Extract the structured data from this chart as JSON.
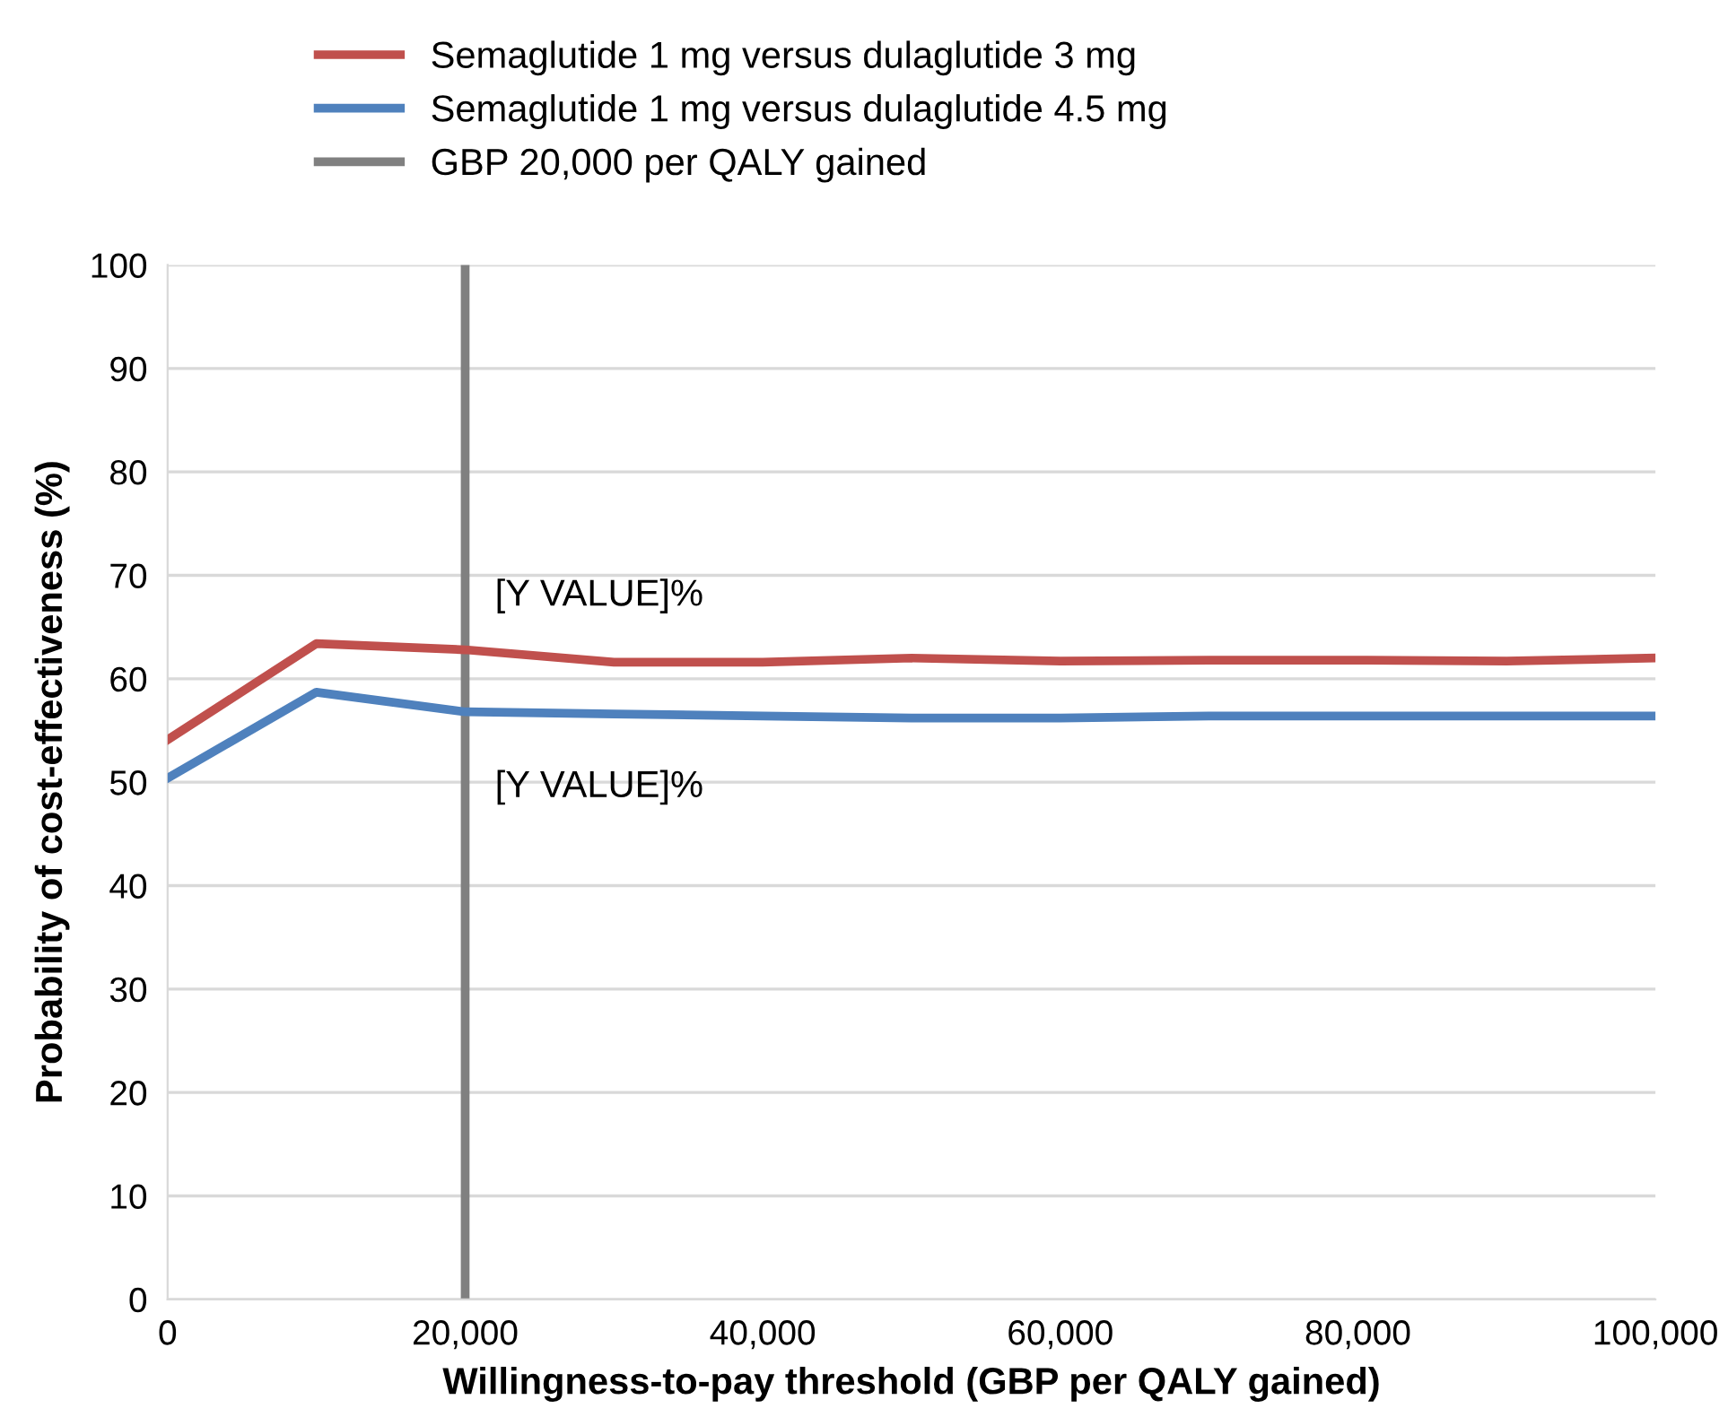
{
  "chart_data": {
    "type": "line",
    "xlabel": "Willingness-to-pay threshold (GBP per QALY gained)",
    "ylabel": "Probability of cost-effectiveness (%)",
    "x": [
      0,
      10000,
      20000,
      30000,
      40000,
      50000,
      60000,
      70000,
      80000,
      90000,
      100000
    ],
    "series": [
      {
        "name": "Semaglutide 1 mg versus dulaglutide 3 mg",
        "color": "#c0504d",
        "values": [
          54.1,
          63.4,
          62.8,
          61.6,
          61.6,
          62.0,
          61.7,
          61.8,
          61.8,
          61.7,
          62.0
        ]
      },
      {
        "name": "Semaglutide 1 mg versus dulaglutide 4.5 mg",
        "color": "#4f81bd",
        "values": [
          50.4,
          58.7,
          56.8,
          56.6,
          56.4,
          56.2,
          56.2,
          56.4,
          56.4,
          56.4,
          56.4
        ]
      }
    ],
    "ref_lines": [
      {
        "axis": "x",
        "value": 20000,
        "label": "GBP 20,000 per QALY gained",
        "color": "#808080"
      }
    ],
    "annotations": [
      "[Y VALUE]%",
      "[Y VALUE]%"
    ],
    "xlim": [
      0,
      100000
    ],
    "xticks": [
      0,
      {
        "value": 20000,
        "label": "20,000"
      },
      {
        "value": 40000,
        "label": "40,000"
      },
      {
        "value": 60000,
        "label": "60,000"
      },
      {
        "value": 80000,
        "label": "80,000"
      },
      {
        "value": 100000,
        "label": "100,000"
      }
    ],
    "ylim": [
      0,
      100
    ],
    "yticks": [
      0,
      10,
      20,
      30,
      40,
      50,
      60,
      70,
      80,
      90,
      100
    ],
    "grid": "y",
    "legend": "top",
    "marker": "none",
    "line_style": "solid"
  }
}
